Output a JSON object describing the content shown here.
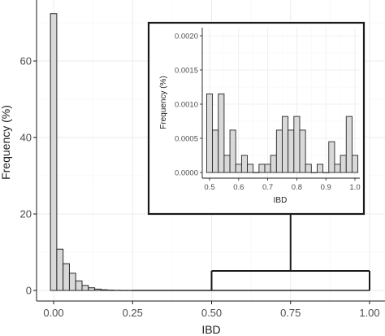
{
  "chart_data": [
    {
      "type": "bar",
      "role": "main",
      "xlabel": "IBD",
      "ylabel": "Frequency (%)",
      "xlim": [
        -0.05,
        1.05
      ],
      "ylim": [
        0,
        72
      ],
      "xticks": [
        "0.00",
        "0.25",
        "0.50",
        "0.75",
        "1.00"
      ],
      "yticks": [
        "0",
        "20",
        "40",
        "60"
      ],
      "grid": true,
      "bin_width": 0.02,
      "bins": [
        {
          "x": 0.0,
          "y": 72.4
        },
        {
          "x": 0.02,
          "y": 10.8
        },
        {
          "x": 0.04,
          "y": 7.0
        },
        {
          "x": 0.06,
          "y": 4.5
        },
        {
          "x": 0.08,
          "y": 2.5
        },
        {
          "x": 0.1,
          "y": 1.3
        },
        {
          "x": 0.12,
          "y": 0.7
        },
        {
          "x": 0.14,
          "y": 0.35
        },
        {
          "x": 0.16,
          "y": 0.18
        },
        {
          "x": 0.18,
          "y": 0.1
        },
        {
          "x": 0.2,
          "y": 0.05
        },
        {
          "x": 0.22,
          "y": 0.03
        },
        {
          "x": 0.24,
          "y": 0.02
        }
      ],
      "bracket": {
        "from": 0.5,
        "to": 1.0
      }
    },
    {
      "type": "bar",
      "role": "inset",
      "xlabel": "IBD",
      "ylabel": "Frequency (%)",
      "xlim": [
        0.475,
        1.025
      ],
      "ylim": [
        0,
        0.0021
      ],
      "xticks": [
        "0.5",
        "0.6",
        "0.7",
        "0.8",
        "0.9",
        "1.0"
      ],
      "yticks": [
        "0.0000",
        "0.0005",
        "0.0010",
        "0.0015",
        "0.0020"
      ],
      "grid": true,
      "bin_width": 0.02,
      "bins": [
        {
          "x": 0.5,
          "y": 0.00115
        },
        {
          "x": 0.52,
          "y": 0.00062
        },
        {
          "x": 0.54,
          "y": 0.00115
        },
        {
          "x": 0.56,
          "y": 0.00025
        },
        {
          "x": 0.58,
          "y": 0.00062
        },
        {
          "x": 0.6,
          "y": 0.00012
        },
        {
          "x": 0.62,
          "y": 0.00025
        },
        {
          "x": 0.64,
          "y": 0.00012
        },
        {
          "x": 0.66,
          "y": 0.0
        },
        {
          "x": 0.68,
          "y": 0.00012
        },
        {
          "x": 0.7,
          "y": 0.00012
        },
        {
          "x": 0.72,
          "y": 0.00025
        },
        {
          "x": 0.74,
          "y": 0.00062
        },
        {
          "x": 0.76,
          "y": 0.00082
        },
        {
          "x": 0.78,
          "y": 0.00062
        },
        {
          "x": 0.8,
          "y": 0.00082
        },
        {
          "x": 0.82,
          "y": 0.00062
        },
        {
          "x": 0.84,
          "y": 0.00012
        },
        {
          "x": 0.86,
          "y": 0.0
        },
        {
          "x": 0.88,
          "y": 0.00012
        },
        {
          "x": 0.9,
          "y": 0.0
        },
        {
          "x": 0.92,
          "y": 0.00045
        },
        {
          "x": 0.94,
          "y": 0.00012
        },
        {
          "x": 0.96,
          "y": 0.00025
        },
        {
          "x": 0.98,
          "y": 0.00082
        },
        {
          "x": 1.0,
          "y": 0.00025
        }
      ]
    }
  ],
  "colors": {
    "bar_fill": "#d9d9d9",
    "bar_stroke": "#262626",
    "grid_major": "#ebebeb",
    "grid_minor": "#f5f5f5",
    "frame": "#1a1a1a"
  }
}
